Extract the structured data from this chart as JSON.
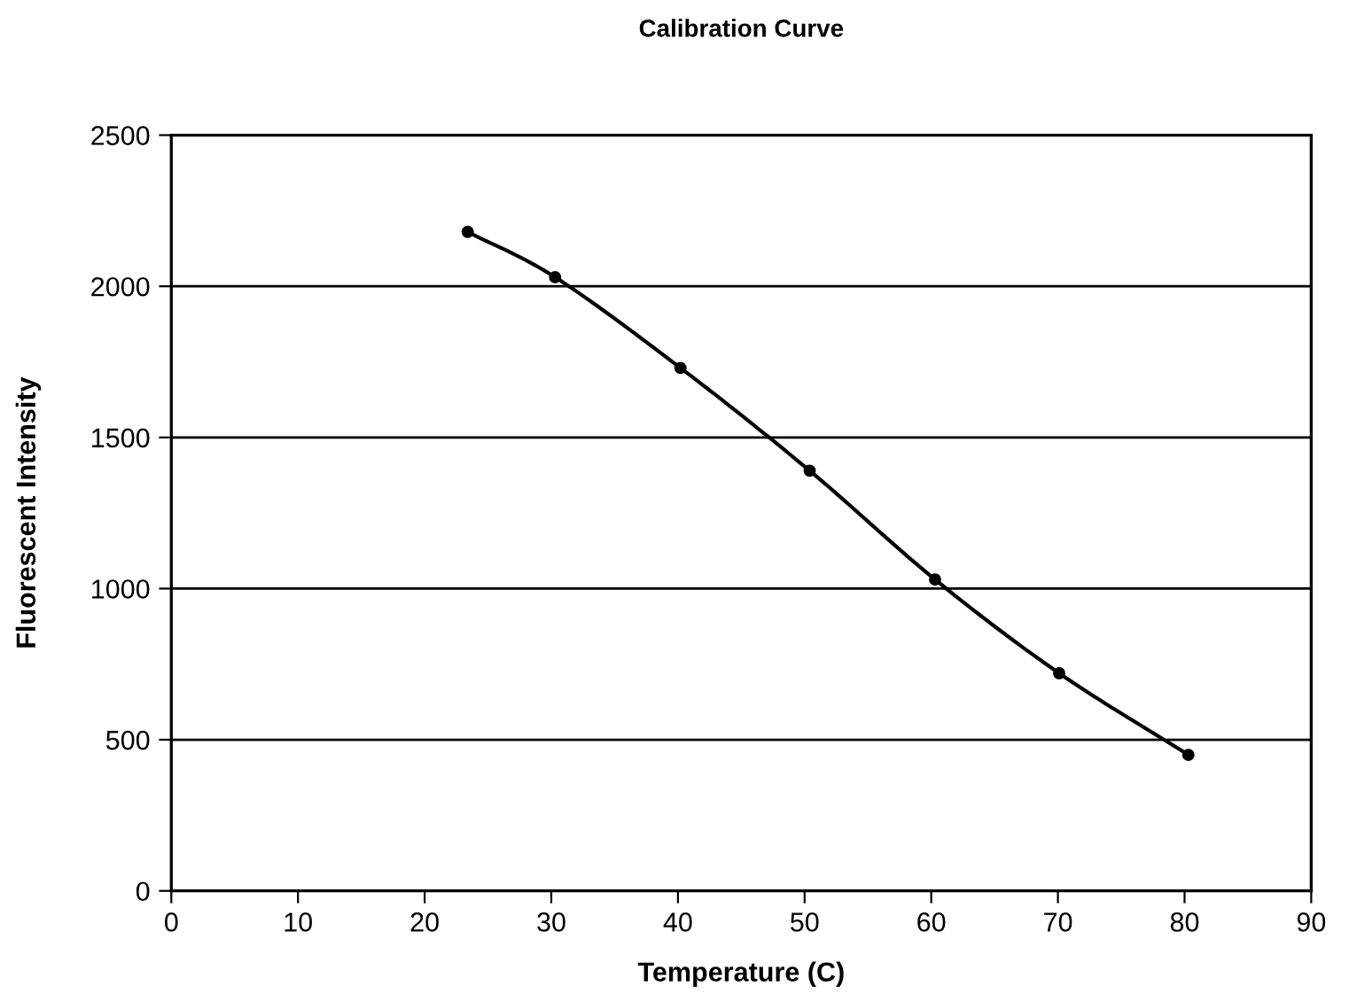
{
  "chart_data": {
    "type": "line",
    "title": "Calibration Curve",
    "xlabel": "Temperature (C)",
    "ylabel": "Fluorescent Intensity",
    "x": [
      23.4,
      30.3,
      40.2,
      50.4,
      60.3,
      70.1,
      80.3
    ],
    "series": [
      {
        "color": "#000000",
        "values": [
          2180,
          2030,
          1730,
          1390,
          1030,
          720,
          450
        ]
      }
    ],
    "xlim": [
      0,
      90
    ],
    "xticks": [
      0,
      10,
      20,
      30,
      40,
      50,
      60,
      70,
      80,
      90
    ],
    "ylim": [
      0,
      2500
    ],
    "yticks": [
      0,
      500,
      1000,
      1500,
      2000,
      2500
    ],
    "grid": "y",
    "marker": "circle",
    "line_style": "solid",
    "legend": false
  }
}
